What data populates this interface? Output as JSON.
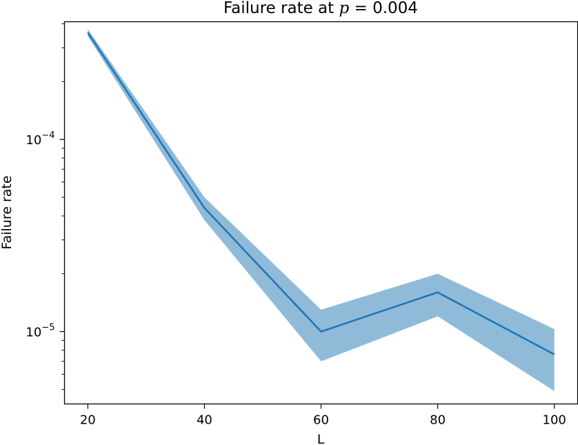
{
  "chart_data": {
    "type": "line",
    "title_prefix": "Failure rate at ",
    "title_var": "p",
    "title_suffix": " = 0.004",
    "xlabel": "L",
    "ylabel": "Failure rate",
    "x": [
      20,
      40,
      60,
      80,
      100
    ],
    "xlim": [
      16,
      104
    ],
    "x_ticks": [
      20,
      40,
      60,
      80,
      100
    ],
    "yscale": "log",
    "ylim": [
      4.2e-06,
      0.00041
    ],
    "y_ticks": [
      {
        "base": "10",
        "exp": "−4",
        "value": 0.0001
      },
      {
        "base": "10",
        "exp": "−5",
        "value": 1e-05
      }
    ],
    "y_minor_ticks": [
      5e-06,
      6e-06,
      7e-06,
      8e-06,
      9e-06,
      2e-05,
      3e-05,
      4e-05,
      5e-05,
      6e-05,
      7e-05,
      8e-05,
      9e-05,
      0.0002,
      0.0003,
      0.0004
    ],
    "grid": false,
    "series": [
      {
        "values": [
          0.00036,
          4.4e-05,
          1e-05,
          1.6e-05,
          7.6e-06
        ],
        "lower": [
          0.000345,
          3.8e-05,
          7e-06,
          1.2e-05,
          4.9e-06
        ],
        "upper": [
          0.000375,
          5e-05,
          1.3e-05,
          2e-05,
          1.03e-05
        ],
        "color": "#1f77b4",
        "band_color": "#1f77b4",
        "band_opacity": 0.5
      }
    ]
  }
}
